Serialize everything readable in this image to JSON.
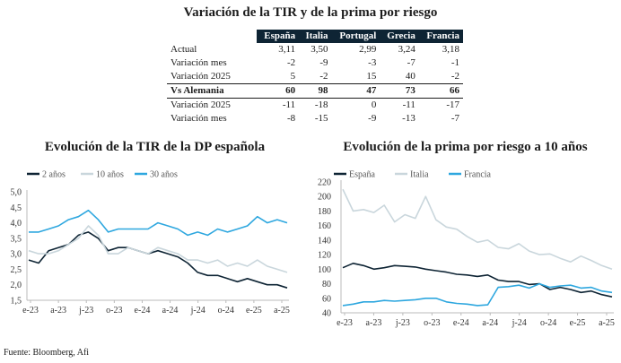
{
  "table": {
    "title": "Variación de la TIR y de la prima por riesgo",
    "columns": [
      "España",
      "Italia",
      "Portugal",
      "Grecia",
      "Francia"
    ],
    "rows": [
      {
        "label": "Actual",
        "values": [
          "3,11",
          "3,50",
          "2,99",
          "3,24",
          "3,18"
        ],
        "bold": false
      },
      {
        "label": "Variación mes",
        "values": [
          "-2",
          "-9",
          "-3",
          "-7",
          "-1"
        ],
        "bold": false
      },
      {
        "label": "Variación 2025",
        "values": [
          "5",
          "-2",
          "15",
          "40",
          "-2"
        ],
        "bold": false
      },
      {
        "label": "Vs Alemania",
        "values": [
          "60",
          "98",
          "47",
          "73",
          "66"
        ],
        "bold": true
      },
      {
        "label": "Variación 2025",
        "values": [
          "-11",
          "-18",
          "0",
          "-11",
          "-17"
        ],
        "bold": false
      },
      {
        "label": "Variación mes",
        "values": [
          "-8",
          "-15",
          "-9",
          "-13",
          "-7"
        ],
        "bold": false
      }
    ]
  },
  "chart_data": [
    {
      "type": "line",
      "title": "Evolución de la TIR de la DP española",
      "xlabel": "",
      "ylabel": "",
      "ylim": [
        1.5,
        5.0
      ],
      "yticks": [
        "5,0",
        "4,5",
        "4,0",
        "3,5",
        "3,0",
        "2,5",
        "2,0",
        "1,5"
      ],
      "ytick_values": [
        5.0,
        4.5,
        4.0,
        3.5,
        3.0,
        2.5,
        2.0,
        1.5
      ],
      "xticks": [
        "e-23",
        "a-23",
        "j-23",
        "o-23",
        "e-24",
        "a-24",
        "j-24",
        "o-24",
        "e-25",
        "a-25"
      ],
      "legend": "top-left",
      "grid": false,
      "series": [
        {
          "name": "2 años",
          "color": "#0e2434",
          "values": [
            2.8,
            2.7,
            3.1,
            3.2,
            3.3,
            3.6,
            3.7,
            3.5,
            3.1,
            3.2,
            3.2,
            3.1,
            3.0,
            3.1,
            3.0,
            2.9,
            2.7,
            2.4,
            2.3,
            2.3,
            2.2,
            2.1,
            2.2,
            2.1,
            2.0,
            2.0,
            1.9
          ]
        },
        {
          "name": "10 años",
          "color": "#c9d6dc",
          "values": [
            3.1,
            3.0,
            3.0,
            3.1,
            3.3,
            3.5,
            3.9,
            3.6,
            3.0,
            3.0,
            3.2,
            3.1,
            3.0,
            3.2,
            3.1,
            3.0,
            2.8,
            2.8,
            2.7,
            2.8,
            2.6,
            2.7,
            2.6,
            2.8,
            2.6,
            2.5,
            2.4
          ]
        },
        {
          "name": "30 años",
          "color": "#2ea7df",
          "values": [
            3.7,
            3.7,
            3.8,
            3.9,
            4.1,
            4.2,
            4.4,
            4.1,
            3.7,
            3.8,
            3.8,
            3.8,
            3.8,
            4.0,
            3.9,
            3.8,
            3.6,
            3.7,
            3.6,
            3.8,
            3.7,
            3.8,
            3.9,
            4.2,
            4.0,
            4.1,
            4.0
          ]
        }
      ]
    },
    {
      "type": "line",
      "title": "Evolución de la prima por riesgo a 10 años",
      "xlabel": "",
      "ylabel": "",
      "ylim": [
        40,
        220
      ],
      "yticks": [
        "220",
        "200",
        "180",
        "160",
        "140",
        "120",
        "100",
        "80",
        "60",
        "40"
      ],
      "ytick_values": [
        220,
        200,
        180,
        160,
        140,
        120,
        100,
        80,
        60,
        40
      ],
      "xticks": [
        "e-23",
        "a-23",
        "j-23",
        "o-23",
        "e-24",
        "a-24",
        "j-24",
        "o-24",
        "e-25",
        "a-25"
      ],
      "legend": "top-left",
      "grid": false,
      "series": [
        {
          "name": "España",
          "color": "#0e2434",
          "values": [
            102,
            108,
            105,
            100,
            102,
            105,
            104,
            103,
            100,
            98,
            96,
            93,
            92,
            90,
            92,
            85,
            83,
            83,
            79,
            80,
            72,
            75,
            72,
            68,
            70,
            65,
            62
          ]
        },
        {
          "name": "Italia",
          "color": "#c9d6dc",
          "values": [
            210,
            180,
            182,
            178,
            188,
            165,
            175,
            170,
            200,
            168,
            158,
            155,
            145,
            137,
            140,
            130,
            128,
            135,
            125,
            120,
            121,
            115,
            110,
            118,
            112,
            105,
            100
          ]
        },
        {
          "name": "Francia",
          "color": "#2ea7df",
          "values": [
            50,
            52,
            55,
            55,
            57,
            56,
            57,
            58,
            60,
            60,
            55,
            53,
            52,
            50,
            51,
            75,
            76,
            78,
            74,
            80,
            75,
            77,
            78,
            74,
            75,
            70,
            68
          ]
        }
      ]
    }
  ],
  "source": "Fuente: Bloomberg, Afi"
}
